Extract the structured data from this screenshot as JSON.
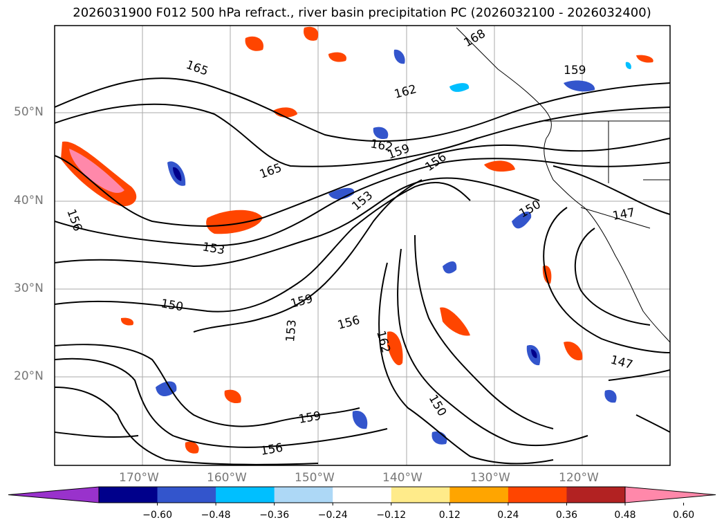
{
  "title": "2026031900 F012 500 hPa refract., river basin precipitation PC (2026032100 - 2026032400)",
  "lat_labels": [
    "50°N",
    "40°N",
    "30°N",
    "20°N"
  ],
  "lon_labels": [
    "170°W",
    "160°W",
    "150°W",
    "140°W",
    "130°W",
    "120°W"
  ],
  "contour_labels": [
    "168",
    "165",
    "162",
    "159",
    "156",
    "153",
    "150",
    "147",
    "165",
    "162",
    "159",
    "156",
    "153",
    "150",
    "159",
    "156",
    "162",
    "153",
    "159",
    "156",
    "150",
    "147"
  ],
  "colorbar": {
    "ticks": [
      "−0.60",
      "−0.48",
      "−0.36",
      "−0.24",
      "−0.12",
      "0.12",
      "0.24",
      "0.36",
      "0.48",
      "0.60"
    ],
    "colors": [
      "#9932cc",
      "#00008b",
      "#3355cc",
      "#00bfff",
      "#add8f6",
      "#ffffff",
      "#ffeb8a",
      "#ffa500",
      "#ff4500",
      "#b22222",
      "#ff88aa"
    ],
    "under_color": "#9932cc",
    "over_color": "#ff88aa"
  }
}
